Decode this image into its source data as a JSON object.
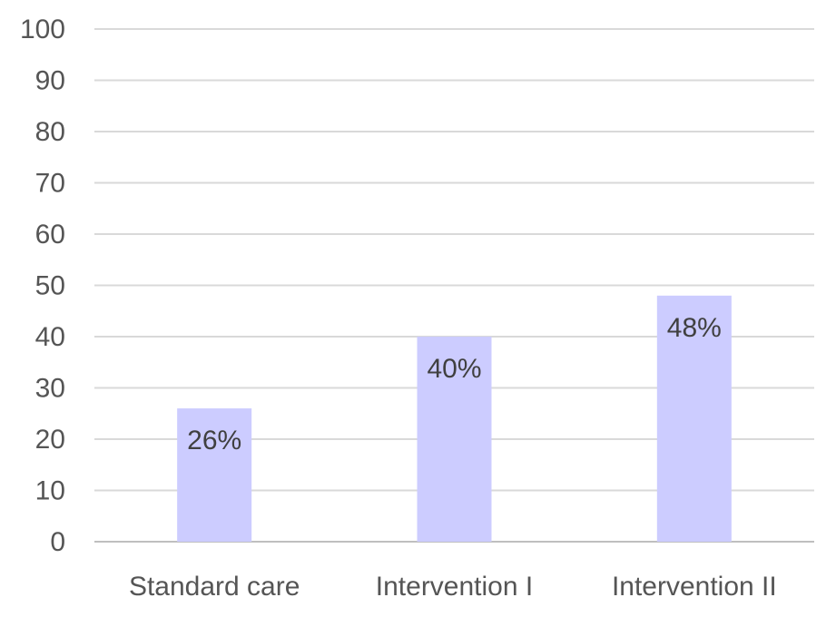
{
  "chart_data": {
    "type": "bar",
    "categories": [
      "Standard care",
      "Intervention I",
      "Intervention II"
    ],
    "values": [
      26,
      40,
      48
    ],
    "data_labels": [
      "26%",
      "40%",
      "48%"
    ],
    "title": "",
    "xlabel": "",
    "ylabel": "",
    "ylim": [
      0,
      100
    ],
    "y_ticks": [
      "0",
      "10",
      "20",
      "30",
      "40",
      "50",
      "60",
      "70",
      "80",
      "90",
      "100"
    ],
    "grid": true,
    "legend": "none",
    "bar_color": "#ccccff"
  }
}
